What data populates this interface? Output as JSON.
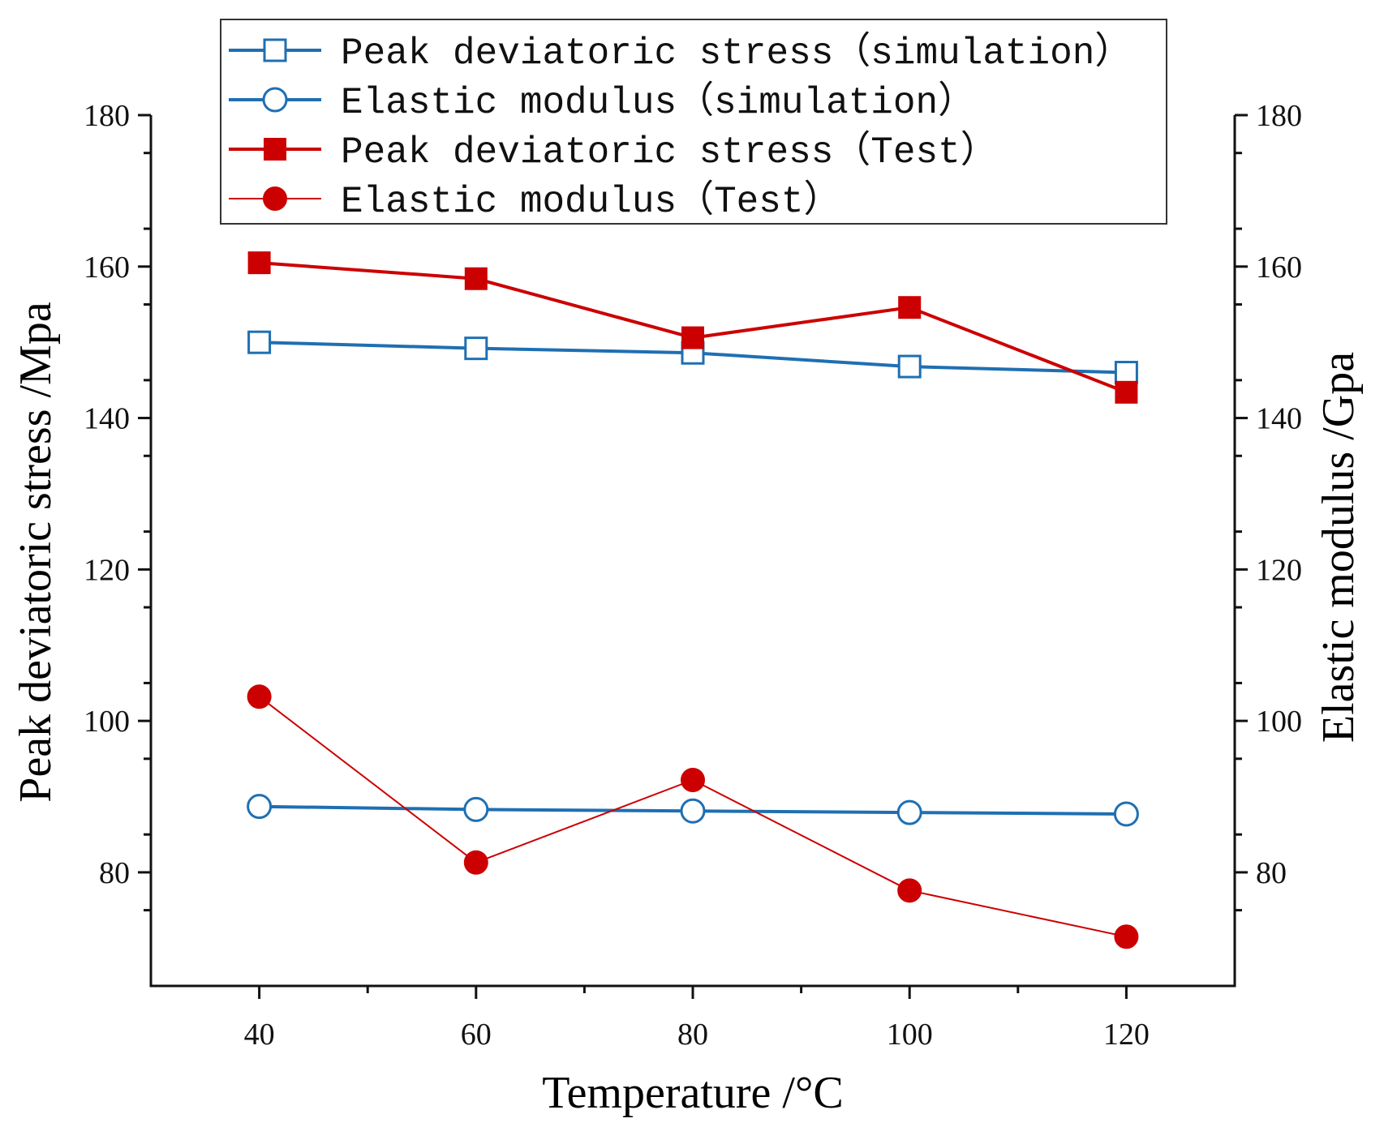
{
  "chart_data": {
    "type": "line",
    "xlabel": "Temperature /°C",
    "ylabel": "Peak deviatoric stress /Mpa",
    "y2label": "Elastic modulus /Gpa",
    "x": [
      40,
      60,
      80,
      100,
      120
    ],
    "xlim": [
      30,
      130
    ],
    "ylim": [
      65,
      180
    ],
    "y2lim": [
      65,
      180
    ],
    "x_ticks": [
      "40",
      "60",
      "80",
      "100",
      "120"
    ],
    "x_tick_values": [
      40,
      60,
      80,
      100,
      120
    ],
    "y_ticks": [
      "80",
      "100",
      "120",
      "140",
      "160",
      "180"
    ],
    "y_tick_values": [
      80,
      100,
      120,
      140,
      160,
      180
    ],
    "y2_ticks": [
      "80",
      "100",
      "120",
      "140",
      "160",
      "180"
    ],
    "y2_tick_values": [
      80,
      100,
      120,
      140,
      160,
      180
    ],
    "minor_y_step": 10,
    "minor_x_step": 10,
    "legend_position": "top-center",
    "series": [
      {
        "name": "Peak deviatoric stress（simulation）",
        "axis": "left",
        "color": "#1f6fb2",
        "marker": "square-open",
        "line": "thick",
        "values": [
          150.0,
          149.2,
          148.6,
          146.8,
          146.0
        ]
      },
      {
        "name": "Elastic modulus（simulation）",
        "axis": "right",
        "color": "#1f6fb2",
        "marker": "circle-open",
        "line": "thick",
        "values": [
          88.7,
          88.3,
          88.1,
          87.9,
          87.7
        ]
      },
      {
        "name": "Peak deviatoric stress（Test）",
        "axis": "left",
        "color": "#cc0000",
        "marker": "square-filled",
        "line": "thick",
        "values": [
          160.5,
          158.4,
          150.6,
          154.6,
          143.4
        ]
      },
      {
        "name": "Elastic modulus（Test）",
        "axis": "right",
        "color": "#cc0000",
        "marker": "circle-filled",
        "line": "thin",
        "values": [
          103.2,
          81.3,
          92.2,
          77.6,
          71.5
        ]
      }
    ]
  }
}
